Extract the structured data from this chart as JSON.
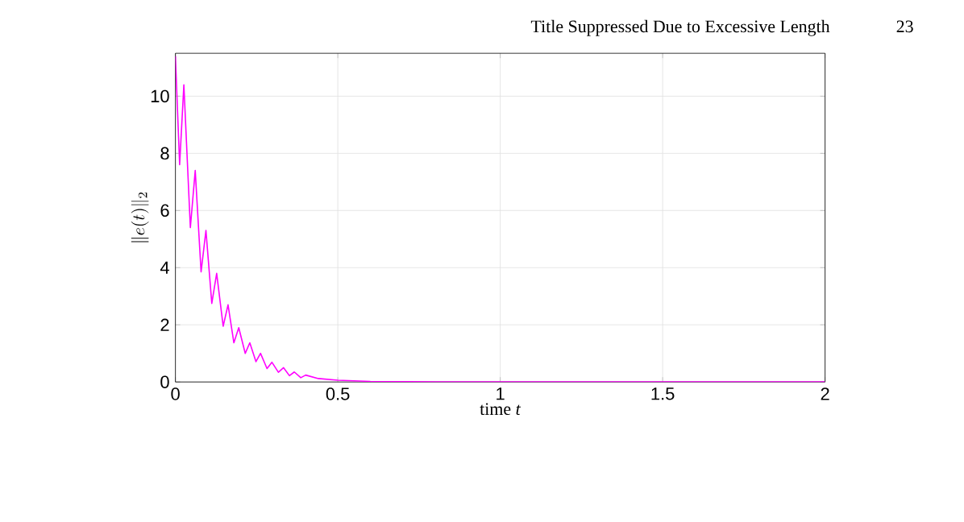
{
  "chart_data": {
    "type": "line",
    "xlabel": "time *t*",
    "ylabel": "\\|e(t)\\|_2",
    "annotations": [
      "Title Suppressed Due to Excessive Length",
      "23"
    ],
    "x": [
      0,
      0.013,
      0.026,
      0.046,
      0.061,
      0.079,
      0.094,
      0.112,
      0.127,
      0.147,
      0.162,
      0.18,
      0.195,
      0.215,
      0.229,
      0.248,
      0.262,
      0.282,
      0.297,
      0.317,
      0.333,
      0.351,
      0.366,
      0.386,
      0.401,
      0.44,
      0.5,
      0.6,
      0.8,
      1,
      1.5,
      2
    ],
    "series": [
      {
        "color": "#ff00ff",
        "values": [
          11.4,
          7.6,
          10.4,
          5.4,
          7.4,
          3.85,
          5.3,
          2.75,
          3.8,
          1.95,
          2.7,
          1.37,
          1.9,
          1.0,
          1.37,
          0.71,
          1.0,
          0.47,
          0.69,
          0.34,
          0.5,
          0.22,
          0.35,
          0.15,
          0.24,
          0.12,
          0.06,
          0.02,
          0,
          0,
          0,
          0
        ]
      }
    ],
    "xlim": [
      0,
      2
    ],
    "ylim": [
      0,
      11.5
    ],
    "xticks": [
      0,
      0.5,
      1,
      1.5,
      2
    ],
    "yticks": [
      0,
      2,
      4,
      6,
      8,
      10
    ],
    "grid": true,
    "marker": "none",
    "line_style": "solid"
  }
}
